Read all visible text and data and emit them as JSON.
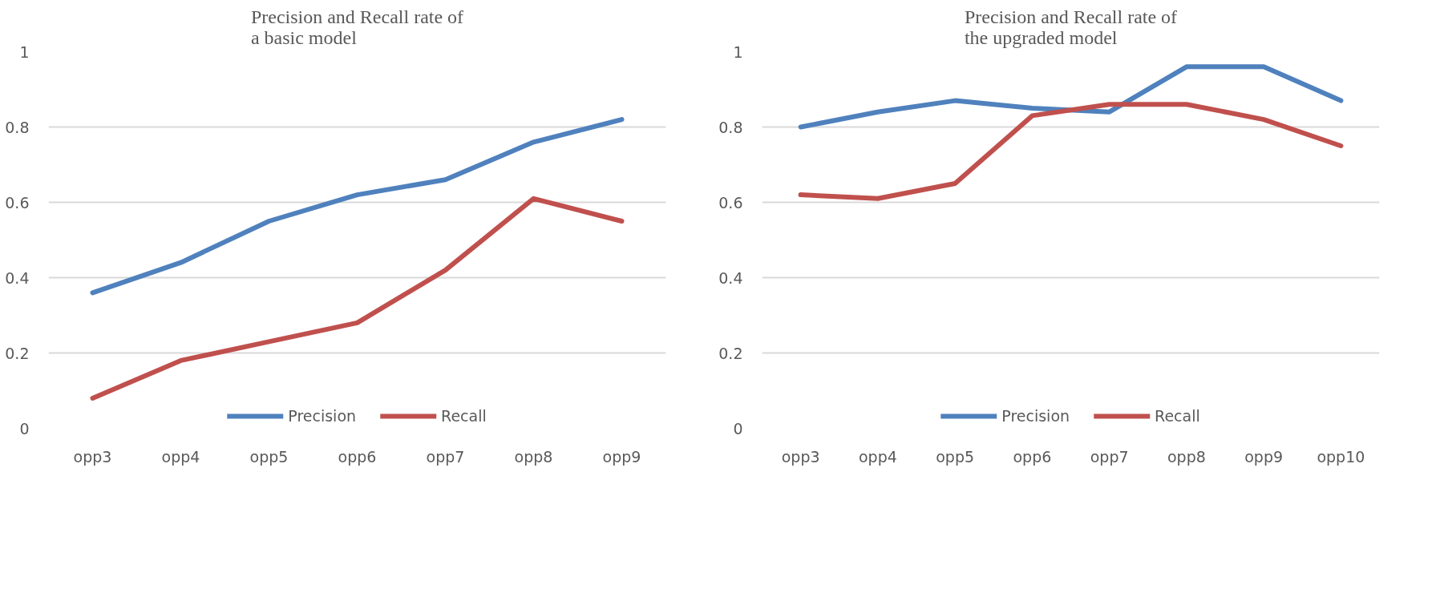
{
  "chart_data": [
    {
      "type": "line",
      "title": "Precision and Recall rate of\na basic model",
      "categories": [
        "opp3",
        "opp4",
        "opp5",
        "opp6",
        "opp7",
        "opp8",
        "opp9"
      ],
      "ylim": [
        0,
        1
      ],
      "yticks": [
        0,
        0.2,
        0.4,
        0.6,
        0.8,
        1
      ],
      "grid": "y",
      "legend": "bottom",
      "marker": "none",
      "line_style": "solid",
      "series": [
        {
          "name": "Precision",
          "color": "#4f81bd",
          "values": [
            0.36,
            0.44,
            0.55,
            0.62,
            0.66,
            0.76,
            0.82
          ]
        },
        {
          "name": "Recall",
          "color": "#c0504d",
          "values": [
            0.08,
            0.18,
            0.23,
            0.28,
            0.42,
            0.61,
            0.55
          ]
        }
      ]
    },
    {
      "type": "line",
      "title": "Precision and Recall rate of\nthe upgraded model",
      "categories": [
        "opp3",
        "opp4",
        "opp5",
        "opp6",
        "opp7",
        "opp8",
        "opp9",
        "opp10"
      ],
      "ylim": [
        0,
        1
      ],
      "yticks": [
        0,
        0.2,
        0.4,
        0.6,
        0.8,
        1
      ],
      "grid": "y",
      "legend": "bottom",
      "marker": "none",
      "line_style": "solid",
      "series": [
        {
          "name": "Precision",
          "color": "#4f81bd",
          "values": [
            0.8,
            0.84,
            0.87,
            0.85,
            0.84,
            0.96,
            0.96,
            0.87
          ]
        },
        {
          "name": "Recall",
          "color": "#c0504d",
          "values": [
            0.62,
            0.61,
            0.65,
            0.83,
            0.86,
            0.86,
            0.82,
            0.75
          ]
        }
      ]
    }
  ]
}
